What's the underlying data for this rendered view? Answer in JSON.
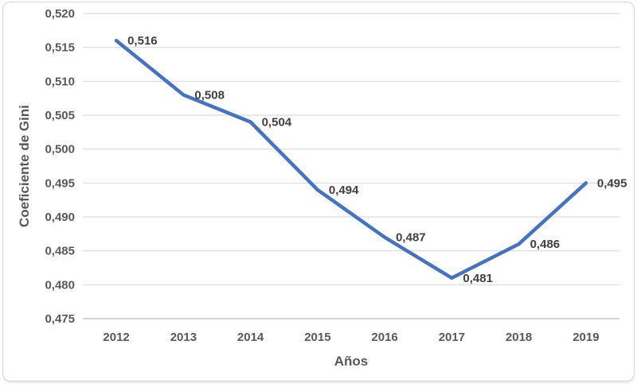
{
  "chart_data": {
    "type": "line",
    "title": "",
    "xlabel": "Años",
    "ylabel": "Coeficiente de Gini",
    "categories": [
      "2012",
      "2013",
      "2014",
      "2015",
      "2016",
      "2017",
      "2018",
      "2019"
    ],
    "series": [
      {
        "name": "Coeficiente de Gini",
        "values": [
          0.516,
          0.508,
          0.504,
          0.494,
          0.487,
          0.481,
          0.486,
          0.495
        ],
        "point_labels": [
          "0,516",
          "0,508",
          "0,504",
          "0,494",
          "0,487",
          "0,481",
          "0,486",
          "0,495"
        ]
      }
    ],
    "y_ticks": [
      "0,475",
      "0,480",
      "0,485",
      "0,490",
      "0,495",
      "0,500",
      "0,505",
      "0,510",
      "0,515",
      "0,520"
    ],
    "ylim": [
      0.475,
      0.52
    ],
    "y_step": 0.005,
    "grid": true,
    "legend": "none",
    "decimal_separator": ",",
    "colors": {
      "line": "#4472C4",
      "gridline": "#D9D9D9",
      "axis_line": "#C6C6C6",
      "tick_label": "#595959",
      "axis_title": "#595959",
      "data_label": "#404040",
      "frame_border": "#D6D6D6",
      "background": "#FFFFFF"
    }
  }
}
